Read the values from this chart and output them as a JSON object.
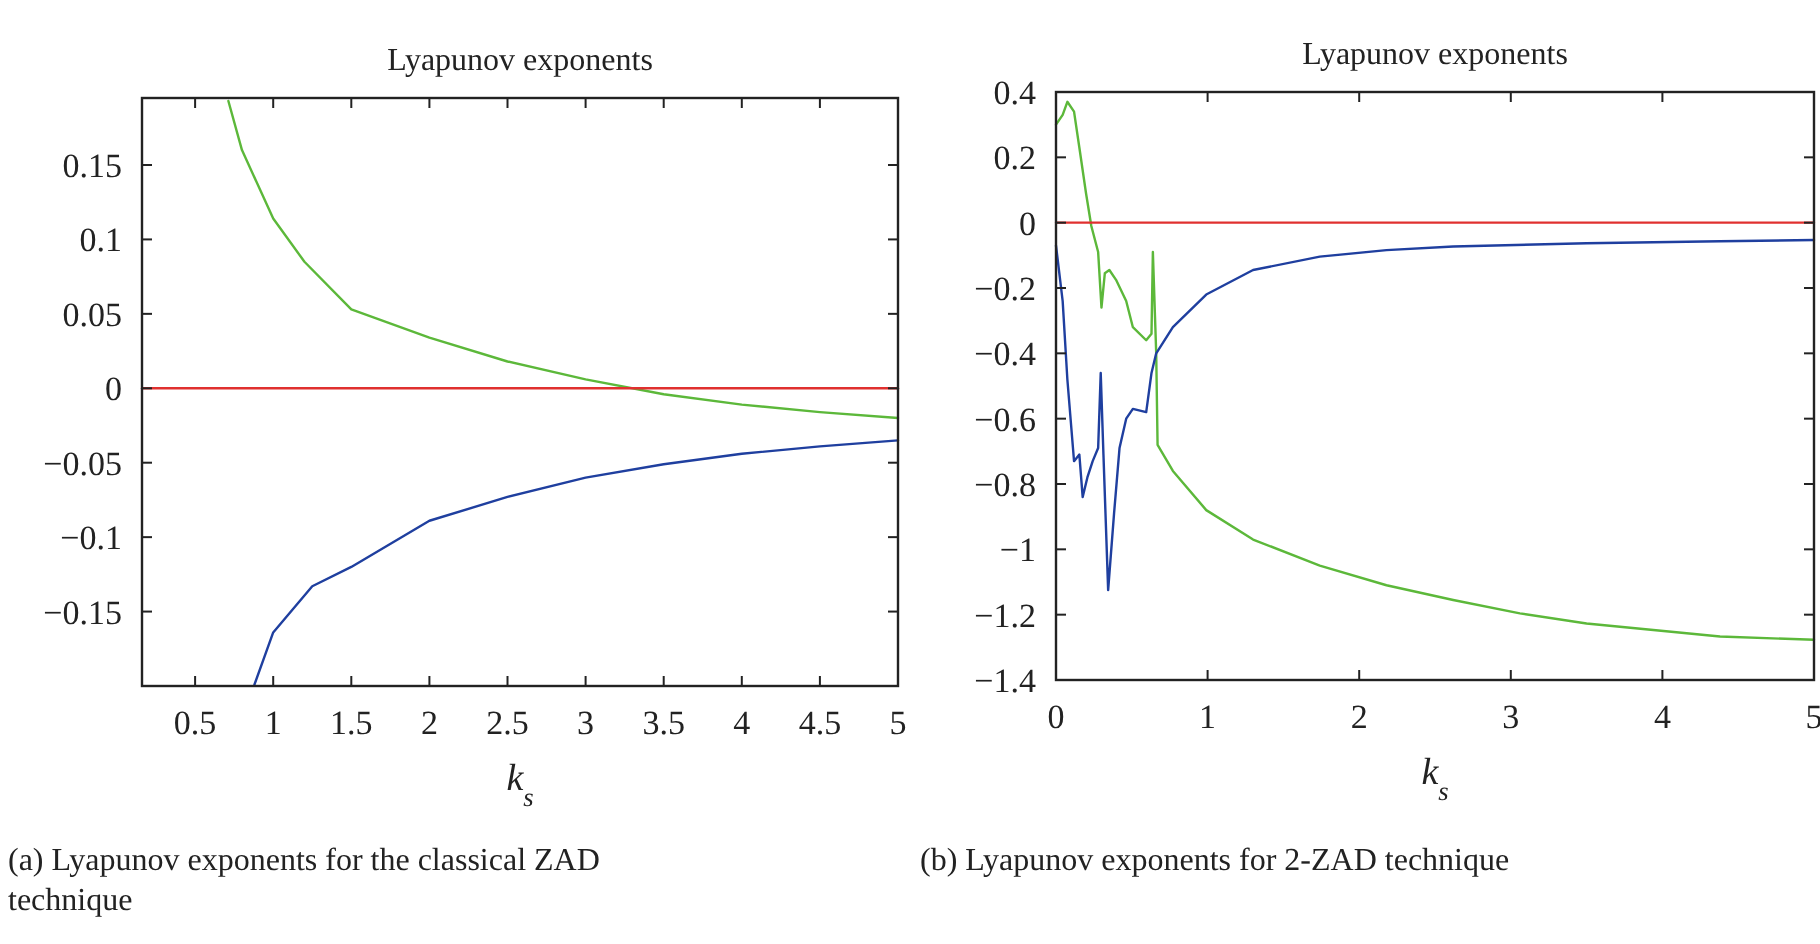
{
  "chart_data": [
    {
      "type": "line",
      "title": "Lyapunov exponents",
      "xlabel": "k$_{s}$",
      "annotations": [
        "(a) Lyapunov exponents for the classical ZAD technique"
      ],
      "xlim": [
        0.16,
        5
      ],
      "ylim": [
        -0.2,
        0.195
      ],
      "xticks": [
        0.5,
        1,
        1.5,
        2,
        2.5,
        3,
        3.5,
        4,
        4.5,
        5
      ],
      "yticks": [
        -0.15,
        -0.1,
        -0.05,
        0,
        0.05,
        0.1,
        0.15
      ],
      "grid": false,
      "line_style": "solid",
      "series": [
        {
          "color": "#5cb83a",
          "x": [
            0.713,
            0.8,
            1.0,
            1.2,
            1.5,
            2.0,
            2.5,
            3.0,
            3.5,
            4.0,
            4.5,
            5.0
          ],
          "values": [
            0.193,
            0.16,
            0.114,
            0.085,
            0.053,
            0.034,
            0.018,
            0.006,
            -0.004,
            -0.011,
            -0.016,
            -0.02
          ]
        },
        {
          "color": "#1f3f9f",
          "x": [
            0.88,
            1.0,
            1.25,
            1.5,
            2.0,
            2.5,
            3.0,
            3.5,
            4.0,
            4.5,
            5.0
          ],
          "values": [
            -0.199,
            -0.164,
            -0.133,
            -0.12,
            -0.089,
            -0.073,
            -0.06,
            -0.051,
            -0.044,
            -0.039,
            -0.035
          ]
        },
        {
          "color": "#e0302f",
          "x": [
            0.16,
            5
          ],
          "values": [
            0,
            0
          ]
        }
      ]
    },
    {
      "type": "line",
      "title": "Lyapunov exponents",
      "xlabel": "k$_{s}$",
      "annotations": [
        "(b) Lyapunov exponents for 2-ZAD technique"
      ],
      "xlim": [
        0,
        5
      ],
      "ylim": [
        -1.4,
        0.4
      ],
      "xticks": [
        0,
        1,
        2,
        3,
        4,
        5
      ],
      "yticks": [
        -1.4,
        -1.2,
        -1,
        -0.8,
        -0.6,
        -0.4,
        -0.2,
        0,
        0.2,
        0.4
      ],
      "grid": false,
      "line_style": "solid",
      "series": [
        {
          "color": "#5cb83a",
          "x": [
            0,
            0.044,
            0.075,
            0.119,
            0.154,
            0.198,
            0.233,
            0.278,
            0.3,
            0.322,
            0.352,
            0.396,
            0.463,
            0.507,
            0.595,
            0.63,
            0.639,
            0.661,
            0.67,
            0.771,
            0.991,
            1.3,
            1.74,
            2.18,
            2.62,
            3.06,
            3.5,
            3.94,
            4.38,
            5
          ],
          "values": [
            0.3,
            0.33,
            0.37,
            0.34,
            0.23,
            0.09,
            -0.01,
            -0.09,
            -0.26,
            -0.155,
            -0.145,
            -0.175,
            -0.24,
            -0.32,
            -0.36,
            -0.34,
            -0.09,
            -0.4,
            -0.68,
            -0.76,
            -0.88,
            -0.97,
            -1.05,
            -1.11,
            -1.155,
            -1.196,
            -1.227,
            -1.247,
            -1.267,
            -1.277
          ]
        },
        {
          "color": "#1f3f9f",
          "x": [
            0,
            0.044,
            0.075,
            0.119,
            0.154,
            0.176,
            0.207,
            0.242,
            0.278,
            0.295,
            0.313,
            0.344,
            0.383,
            0.419,
            0.463,
            0.507,
            0.595,
            0.63,
            0.661,
            0.771,
            0.991,
            1.3,
            1.74,
            2.18,
            2.62,
            3.5,
            4.38,
            5
          ],
          "values": [
            -0.07,
            -0.24,
            -0.48,
            -0.73,
            -0.71,
            -0.84,
            -0.78,
            -0.73,
            -0.69,
            -0.46,
            -0.71,
            -1.125,
            -0.89,
            -0.69,
            -0.6,
            -0.57,
            -0.58,
            -0.46,
            -0.4,
            -0.32,
            -0.22,
            -0.145,
            -0.104,
            -0.084,
            -0.073,
            -0.063,
            -0.057,
            -0.053
          ]
        },
        {
          "color": "#e0302f",
          "x": [
            0,
            5
          ],
          "values": [
            0,
            0
          ]
        }
      ]
    }
  ]
}
